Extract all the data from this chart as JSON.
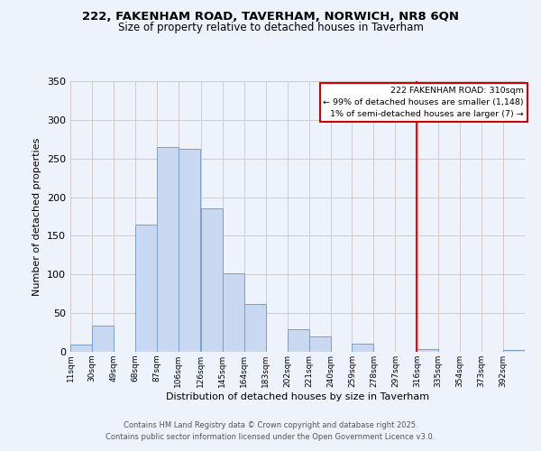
{
  "title1": "222, FAKENHAM ROAD, TAVERHAM, NORWICH, NR8 6QN",
  "title2": "Size of property relative to detached houses in Taverham",
  "xlabel": "Distribution of detached houses by size in Taverham",
  "ylabel": "Number of detached properties",
  "bin_labels": [
    "11sqm",
    "30sqm",
    "49sqm",
    "68sqm",
    "87sqm",
    "106sqm",
    "126sqm",
    "145sqm",
    "164sqm",
    "183sqm",
    "202sqm",
    "221sqm",
    "240sqm",
    "259sqm",
    "278sqm",
    "297sqm",
    "316sqm",
    "335sqm",
    "354sqm",
    "373sqm",
    "392sqm"
  ],
  "bin_edges": [
    11,
    30,
    49,
    68,
    87,
    106,
    126,
    145,
    164,
    183,
    202,
    221,
    240,
    259,
    278,
    297,
    316,
    335,
    354,
    373,
    392
  ],
  "bar_heights": [
    9,
    34,
    0,
    165,
    265,
    263,
    186,
    101,
    62,
    0,
    29,
    20,
    0,
    11,
    0,
    0,
    3,
    0,
    0,
    0,
    2
  ],
  "bar_color": "#c8d8f0",
  "bar_edge_color": "#7a9fc8",
  "red_line_x": 316,
  "ylim": [
    0,
    350
  ],
  "yticks": [
    0,
    50,
    100,
    150,
    200,
    250,
    300,
    350
  ],
  "annotation_title": "222 FAKENHAM ROAD: 310sqm",
  "annotation_line1": "← 99% of detached houses are smaller (1,148)",
  "annotation_line2": "1% of semi-detached houses are larger (7) →",
  "annotation_box_color": "#ffffff",
  "annotation_box_edge": "#cc0000",
  "bg_color": "#eef2fa",
  "plot_bg_color": "#eef2fa",
  "grid_color": "#cccccc",
  "footnote1": "Contains HM Land Registry data © Crown copyright and database right 2025.",
  "footnote2": "Contains public sector information licensed under the Open Government Licence v3.0."
}
